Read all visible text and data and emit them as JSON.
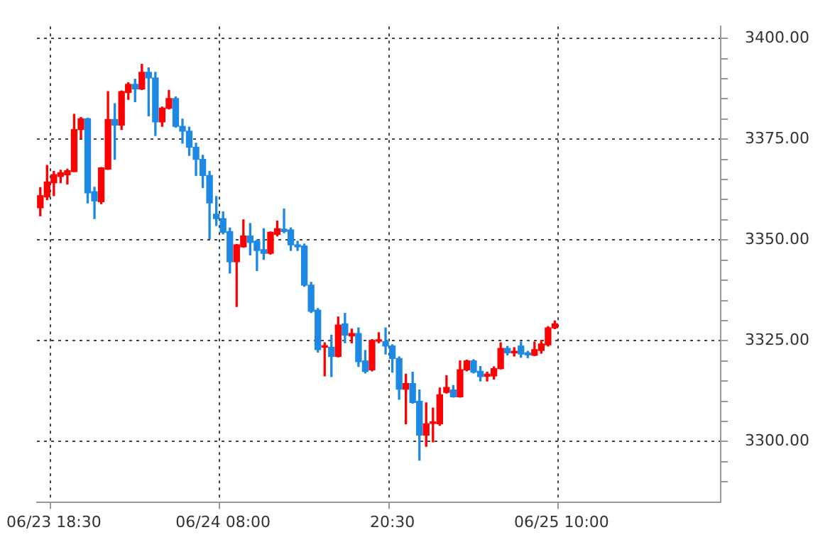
{
  "chart_data": {
    "type": "candlestick",
    "categories": [
      null,
      null,
      "06/23 18:30",
      null,
      null,
      null,
      null,
      null,
      null,
      null,
      null,
      null,
      null,
      null,
      null,
      null,
      null,
      null,
      null,
      null,
      null,
      null,
      null,
      null,
      null,
      null,
      null,
      "06/24 08:00",
      null,
      null,
      null,
      null,
      null,
      null,
      null,
      null,
      null,
      null,
      null,
      null,
      null,
      null,
      null,
      null,
      null,
      null,
      null,
      null,
      null,
      null,
      null,
      null,
      "20:30",
      null,
      null,
      null,
      null,
      null,
      null,
      null,
      null,
      null,
      null,
      null,
      null,
      null,
      null,
      null,
      null,
      null,
      null,
      null,
      null,
      null,
      null,
      null,
      null,
      "06/25 10:00",
      null,
      null,
      null,
      null,
      null,
      null,
      null,
      null,
      null,
      null,
      null,
      null,
      null,
      null,
      null,
      null,
      null,
      null,
      null,
      null,
      null,
      null,
      null
    ],
    "ohlc": [
      [
        3358,
        3363,
        3356,
        3361
      ],
      [
        3360.7,
        3368.5,
        3360,
        3364.4
      ],
      [
        3364.2,
        3367,
        3361,
        3366.2
      ],
      [
        3365.8,
        3367.3,
        3364.2,
        3366.7
      ],
      [
        3366.2,
        3367.6,
        3363.9,
        3367.2
      ],
      [
        3367,
        3381.2,
        3367,
        3377.4
      ],
      [
        3377.4,
        3380.4,
        3375.2,
        3380.1
      ],
      [
        3380.1,
        3380.2,
        3359.2,
        3361.7
      ],
      [
        3362,
        3363.1,
        3355.3,
        3359.7
      ],
      [
        3359.5,
        3368,
        3359,
        3367.9
      ],
      [
        3367.6,
        3386.8,
        3367.5,
        3379.9
      ],
      [
        3379.9,
        3383.8,
        3370,
        3378.5
      ],
      [
        3378.5,
        3387,
        3377.4,
        3386.8
      ],
      [
        3386.6,
        3389,
        3384.9,
        3388.6
      ],
      [
        3388.6,
        3389.9,
        3384.3,
        3387.5
      ],
      [
        3387.5,
        3393.6,
        3387.3,
        3391.6
      ],
      [
        3391.6,
        3392.7,
        3380.8,
        3390.2
      ],
      [
        3390.2,
        3391.6,
        3375.9,
        3379.3
      ],
      [
        3379.3,
        3383,
        3378.2,
        3382.7
      ],
      [
        3382.7,
        3387.1,
        3382.5,
        3385.1
      ],
      [
        3385.1,
        3385.5,
        3378,
        3378.2
      ],
      [
        3378.2,
        3380,
        3374,
        3377
      ],
      [
        3377,
        3378,
        3371,
        3373
      ],
      [
        3373,
        3374,
        3366,
        3370
      ],
      [
        3370,
        3371,
        3363,
        3366
      ],
      [
        3366,
        3367,
        3350.3,
        3359.2
      ],
      [
        3356.4,
        3360.8,
        3353.6,
        3355.3
      ],
      [
        3355.3,
        3357,
        3351.5,
        3351.9
      ],
      [
        3352.1,
        3353,
        3341.8,
        3344.6
      ],
      [
        3344.6,
        3348.9,
        3333.5,
        3348.8
      ],
      [
        3348.3,
        3355,
        3348.2,
        3351
      ],
      [
        3351,
        3354.1,
        3346.3,
        3349.4
      ],
      [
        3349.7,
        3350,
        3342.4,
        3347.4
      ],
      [
        3347.6,
        3352.8,
        3345.2,
        3346.7
      ],
      [
        3346.7,
        3352,
        3346.5,
        3351.9
      ],
      [
        3351.4,
        3354.7,
        3351,
        3352.8
      ],
      [
        3352.7,
        3357.7,
        3351.8,
        3352.1
      ],
      [
        3352.5,
        3353,
        3347.4,
        3348.8
      ],
      [
        3348.8,
        3349.7,
        3347.4,
        3348.3
      ],
      [
        3348.5,
        3349,
        3338.5,
        3338.8
      ],
      [
        3338.8,
        3339.5,
        3332,
        3332.3
      ],
      [
        3332.6,
        3333,
        3322.2,
        3322.8
      ],
      [
        3323.4,
        3324.5,
        3316.3,
        3323.7
      ],
      [
        3323.4,
        3326.4,
        3316.1,
        3321.1
      ],
      [
        3321.1,
        3330.9,
        3321,
        3328.9
      ],
      [
        3329.2,
        3331.8,
        3324.5,
        3326.4
      ],
      [
        3326.2,
        3327.9,
        3324.5,
        3326.8
      ],
      [
        3326.8,
        3328.2,
        3318.6,
        3319.8
      ],
      [
        3320,
        3322.6,
        3317,
        3317.4
      ],
      [
        3317.8,
        3325.3,
        3317.5,
        3325.1
      ],
      [
        3324.9,
        3327,
        3324.5,
        3325.1
      ],
      [
        3324.8,
        3328.2,
        3321.7,
        3323.7
      ],
      [
        3323.7,
        3324,
        3317.2,
        3320.6
      ],
      [
        3320.6,
        3321,
        3310.5,
        3313
      ],
      [
        3313,
        3316.7,
        3304.4,
        3314.4
      ],
      [
        3314.4,
        3317.2,
        3309.5,
        3309.7
      ],
      [
        3310,
        3312.8,
        3295.4,
        3301.6
      ],
      [
        3301.6,
        3309.6,
        3298.8,
        3304.4
      ],
      [
        3304.5,
        3308.3,
        3299.9,
        3304.9
      ],
      [
        3304.4,
        3313.3,
        3304,
        3311.6
      ],
      [
        3312.2,
        3316.3,
        3312,
        3313.4
      ],
      [
        3312.8,
        3313.9,
        3311,
        3311.1
      ],
      [
        3311.1,
        3320,
        3311,
        3317.8
      ],
      [
        3317.8,
        3320.2,
        3317.5,
        3320
      ],
      [
        3320,
        3320.3,
        3317,
        3317.2
      ],
      [
        3317.4,
        3318.6,
        3315,
        3316.1
      ],
      [
        3316.2,
        3317.2,
        3315,
        3316.7
      ],
      [
        3316.3,
        3318.5,
        3315.5,
        3318.1
      ],
      [
        3318.1,
        3324.5,
        3318,
        3323.1
      ],
      [
        3323.1,
        3323.6,
        3321.5,
        3322
      ],
      [
        3322,
        3323.3,
        3321.2,
        3322.4
      ],
      [
        3323.7,
        3324.7,
        3320.9,
        3321.7
      ],
      [
        3322,
        3322.4,
        3320.8,
        3321.5
      ],
      [
        3321.4,
        3324.7,
        3321.3,
        3322.8
      ],
      [
        3322.6,
        3325.1,
        3321.9,
        3324.2
      ],
      [
        3324,
        3328.5,
        3323.7,
        3328.2
      ],
      [
        3328.2,
        3329.9,
        3328,
        3329.2
      ],
      null,
      null,
      null,
      null,
      null,
      null,
      null,
      null,
      null,
      null,
      null,
      null,
      null,
      null,
      null,
      null,
      null,
      null,
      null,
      null,
      null,
      null,
      null,
      null
    ],
    "colors": [
      "#ff0000",
      "#ff0000",
      "#ff0000",
      "#ff0000",
      "#ff0000",
      "#ff0000",
      "#ff0000",
      "#1e88e5",
      "#1e88e5",
      "#ff0000",
      "#ff0000",
      "#1e88e5",
      "#ff0000",
      "#ff0000",
      "#1e88e5",
      "#ff0000",
      "#1e88e5",
      "#1e88e5",
      "#ff0000",
      "#ff0000",
      "#1e88e5",
      "#1e88e5",
      "#1e88e5",
      "#1e88e5",
      "#1e88e5",
      "#1e88e5",
      "#1e88e5",
      "#1e88e5",
      "#1e88e5",
      "#ff0000",
      "#ff0000",
      "#1e88e5",
      "#1e88e5",
      "#1e88e5",
      "#ff0000",
      "#ff0000",
      "#1e88e5",
      "#1e88e5",
      "#1e88e5",
      "#1e88e5",
      "#1e88e5",
      "#1e88e5",
      "#ff0000",
      "#1e88e5",
      "#ff0000",
      "#1e88e5",
      "#ff0000",
      "#1e88e5",
      "#1e88e5",
      "#ff0000",
      "#ff0000",
      "#1e88e5",
      "#1e88e5",
      "#1e88e5",
      "#ff0000",
      "#1e88e5",
      "#1e88e5",
      "#ff0000",
      "#ff0000",
      "#ff0000",
      "#ff0000",
      "#1e88e5",
      "#ff0000",
      "#ff0000",
      "#1e88e5",
      "#1e88e5",
      "#ff0000",
      "#ff0000",
      "#ff0000",
      "#1e88e5",
      "#ff0000",
      "#1e88e5",
      "#1e88e5",
      "#ff0000",
      "#ff0000",
      "#ff0000",
      "#ff0000",
      null,
      null,
      null,
      null,
      null,
      null,
      null,
      null,
      null,
      null,
      null,
      null,
      null,
      null,
      null,
      null,
      null,
      null,
      null,
      null,
      null,
      null,
      null,
      null
    ],
    "ylim": [
      3285,
      3403
    ],
    "yticks": [
      {
        "value": 3290,
        "label": null
      },
      {
        "value": 3295,
        "label": null
      },
      {
        "value": 3300,
        "label": "3300.00"
      },
      {
        "value": 3305,
        "label": null
      },
      {
        "value": 3310,
        "label": null
      },
      {
        "value": 3315,
        "label": null
      },
      {
        "value": 3320,
        "label": null
      },
      {
        "value": 3325,
        "label": "3325.00"
      },
      {
        "value": 3330,
        "label": null
      },
      {
        "value": 3335,
        "label": null
      },
      {
        "value": 3340,
        "label": null
      },
      {
        "value": 3345,
        "label": null
      },
      {
        "value": 3350,
        "label": "3350.00"
      },
      {
        "value": 3355,
        "label": null
      },
      {
        "value": 3360,
        "label": null
      },
      {
        "value": 3365,
        "label": null
      },
      {
        "value": 3370,
        "label": null
      },
      {
        "value": 3375,
        "label": "3375.00"
      },
      {
        "value": 3380,
        "label": null
      },
      {
        "value": 3385,
        "label": null
      },
      {
        "value": 3390,
        "label": null
      },
      {
        "value": 3395,
        "label": null
      },
      {
        "value": 3400,
        "label": "3400.00"
      }
    ],
    "grid": true
  }
}
